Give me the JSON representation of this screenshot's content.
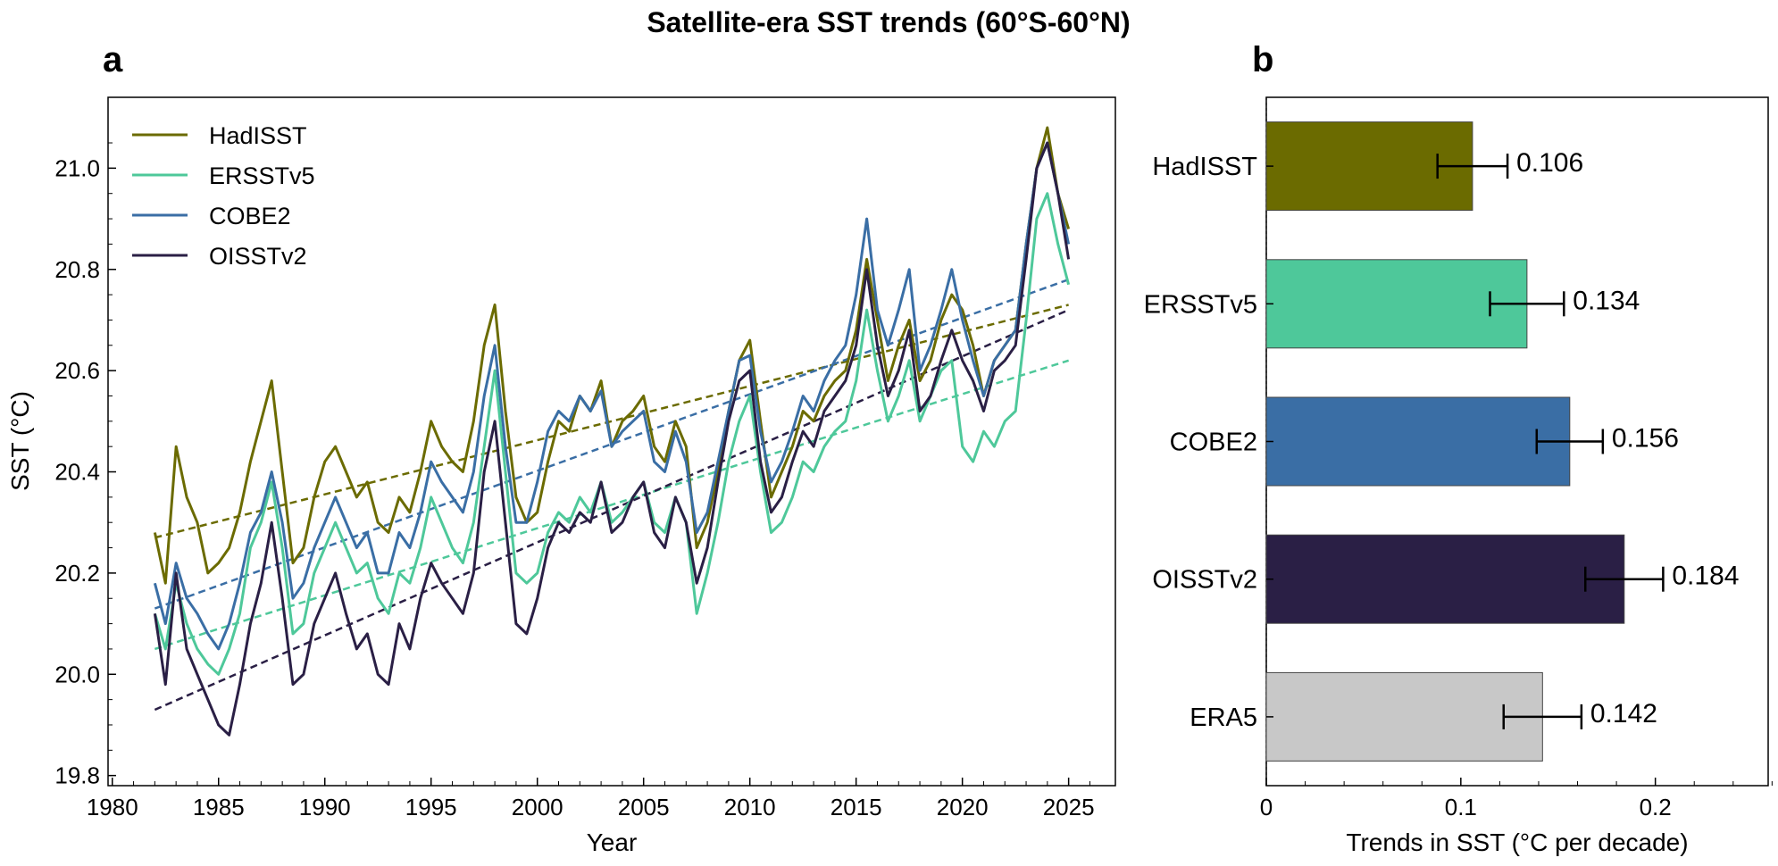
{
  "figure": {
    "title": "Satellite-era SST trends (60°S-60°N)",
    "panel_a_label": "a",
    "panel_b_label": "b"
  },
  "chart_data": [
    {
      "type": "line",
      "panel": "a",
      "xlabel": "Year",
      "ylabel": "SST (°C)",
      "xlim": [
        1979.8,
        2027.2
      ],
      "ylim": [
        19.78,
        21.14
      ],
      "xticks": [
        1980,
        1985,
        1990,
        1995,
        2000,
        2005,
        2010,
        2015,
        2020,
        2025
      ],
      "xtick_labels": [
        "1980",
        "1985",
        "1990",
        "1995",
        "2000",
        "2005",
        "2010",
        "2015",
        "2020",
        "2025"
      ],
      "yticks": [
        19.8,
        20.0,
        20.2,
        20.4,
        20.6,
        20.8,
        21.0
      ],
      "ytick_labels": [
        "19.8",
        "20.0",
        "20.2",
        "20.4",
        "20.6",
        "20.8",
        "21.0"
      ],
      "grid": false,
      "legend_position": "top-left",
      "series": [
        {
          "name": "HadISST",
          "color": "#6b6b00",
          "x": [
            1982.0,
            1982.5,
            1983.0,
            1983.5,
            1984.0,
            1984.5,
            1985.0,
            1985.5,
            1986.0,
            1986.5,
            1987.0,
            1987.5,
            1988.0,
            1988.5,
            1989.0,
            1989.5,
            1990.0,
            1990.5,
            1991.0,
            1991.5,
            1992.0,
            1992.5,
            1993.0,
            1993.5,
            1994.0,
            1994.5,
            1995.0,
            1995.5,
            1996.0,
            1996.5,
            1997.0,
            1997.5,
            1998.0,
            1998.5,
            1999.0,
            1999.5,
            2000.0,
            2000.5,
            2001.0,
            2001.5,
            2002.0,
            2002.5,
            2003.0,
            2003.5,
            2004.0,
            2004.5,
            2005.0,
            2005.5,
            2006.0,
            2006.5,
            2007.0,
            2007.5,
            2008.0,
            2008.5,
            2009.0,
            2009.5,
            2010.0,
            2010.5,
            2011.0,
            2011.5,
            2012.0,
            2012.5,
            2013.0,
            2013.5,
            2014.0,
            2014.5,
            2015.0,
            2015.5,
            2016.0,
            2016.5,
            2017.0,
            2017.5,
            2018.0,
            2018.5,
            2019.0,
            2019.5,
            2020.0,
            2020.5,
            2021.0,
            2021.5,
            2022.0,
            2022.5,
            2023.0,
            2023.5,
            2024.0,
            2024.5,
            2025.0
          ],
          "y": [
            20.28,
            20.18,
            20.45,
            20.35,
            20.3,
            20.2,
            20.22,
            20.25,
            20.32,
            20.42,
            20.5,
            20.58,
            20.4,
            20.22,
            20.25,
            20.35,
            20.42,
            20.45,
            20.4,
            20.35,
            20.38,
            20.3,
            20.28,
            20.35,
            20.32,
            20.4,
            20.5,
            20.45,
            20.42,
            20.4,
            20.5,
            20.65,
            20.73,
            20.52,
            20.35,
            20.3,
            20.32,
            20.42,
            20.5,
            20.48,
            20.55,
            20.52,
            20.58,
            20.45,
            20.5,
            20.52,
            20.55,
            20.45,
            20.42,
            20.5,
            20.45,
            20.25,
            20.3,
            20.4,
            20.52,
            20.62,
            20.66,
            20.5,
            20.35,
            20.4,
            20.45,
            20.52,
            20.5,
            20.55,
            20.58,
            20.6,
            20.68,
            20.82,
            20.7,
            20.58,
            20.65,
            20.7,
            20.58,
            20.62,
            20.7,
            20.75,
            20.72,
            20.65,
            20.55,
            20.62,
            20.65,
            20.68,
            20.85,
            21.0,
            21.08,
            20.95,
            20.88
          ],
          "trend": [
            20.27,
            20.73
          ]
        },
        {
          "name": "ERSSTv5",
          "color": "#4ec89a",
          "x": [
            1982.0,
            1982.5,
            1983.0,
            1983.5,
            1984.0,
            1984.5,
            1985.0,
            1985.5,
            1986.0,
            1986.5,
            1987.0,
            1987.5,
            1988.0,
            1988.5,
            1989.0,
            1989.5,
            1990.0,
            1990.5,
            1991.0,
            1991.5,
            1992.0,
            1992.5,
            1993.0,
            1993.5,
            1994.0,
            1994.5,
            1995.0,
            1995.5,
            1996.0,
            1996.5,
            1997.0,
            1997.5,
            1998.0,
            1998.5,
            1999.0,
            1999.5,
            2000.0,
            2000.5,
            2001.0,
            2001.5,
            2002.0,
            2002.5,
            2003.0,
            2003.5,
            2004.0,
            2004.5,
            2005.0,
            2005.5,
            2006.0,
            2006.5,
            2007.0,
            2007.5,
            2008.0,
            2008.5,
            2009.0,
            2009.5,
            2010.0,
            2010.5,
            2011.0,
            2011.5,
            2012.0,
            2012.5,
            2013.0,
            2013.5,
            2014.0,
            2014.5,
            2015.0,
            2015.5,
            2016.0,
            2016.5,
            2017.0,
            2017.5,
            2018.0,
            2018.5,
            2019.0,
            2019.5,
            2020.0,
            2020.5,
            2021.0,
            2021.5,
            2022.0,
            2022.5,
            2023.0,
            2023.5,
            2024.0,
            2024.5,
            2025.0
          ],
          "y": [
            20.12,
            20.05,
            20.18,
            20.1,
            20.05,
            20.02,
            20.0,
            20.05,
            20.12,
            20.25,
            20.3,
            20.38,
            20.25,
            20.08,
            20.1,
            20.2,
            20.25,
            20.3,
            20.25,
            20.2,
            20.22,
            20.15,
            20.12,
            20.2,
            20.18,
            20.25,
            20.35,
            20.3,
            20.25,
            20.22,
            20.3,
            20.45,
            20.6,
            20.4,
            20.2,
            20.18,
            20.2,
            20.28,
            20.32,
            20.3,
            20.35,
            20.32,
            20.38,
            20.3,
            20.32,
            20.35,
            20.38,
            20.3,
            20.28,
            20.35,
            20.3,
            20.12,
            20.2,
            20.3,
            20.42,
            20.5,
            20.55,
            20.4,
            20.28,
            20.3,
            20.35,
            20.42,
            20.4,
            20.45,
            20.48,
            20.5,
            20.58,
            20.72,
            20.6,
            20.5,
            20.55,
            20.62,
            20.5,
            20.55,
            20.6,
            20.62,
            20.45,
            20.42,
            20.48,
            20.45,
            20.5,
            20.52,
            20.7,
            20.9,
            20.95,
            20.85,
            20.77
          ],
          "trend": [
            20.05,
            20.62
          ]
        },
        {
          "name": "COBE2",
          "color": "#3a6ea5",
          "x": [
            1982.0,
            1982.5,
            1983.0,
            1983.5,
            1984.0,
            1984.5,
            1985.0,
            1985.5,
            1986.0,
            1986.5,
            1987.0,
            1987.5,
            1988.0,
            1988.5,
            1989.0,
            1989.5,
            1990.0,
            1990.5,
            1991.0,
            1991.5,
            1992.0,
            1992.5,
            1993.0,
            1993.5,
            1994.0,
            1994.5,
            1995.0,
            1995.5,
            1996.0,
            1996.5,
            1997.0,
            1997.5,
            1998.0,
            1998.5,
            1999.0,
            1999.5,
            2000.0,
            2000.5,
            2001.0,
            2001.5,
            2002.0,
            2002.5,
            2003.0,
            2003.5,
            2004.0,
            2004.5,
            2005.0,
            2005.5,
            2006.0,
            2006.5,
            2007.0,
            2007.5,
            2008.0,
            2008.5,
            2009.0,
            2009.5,
            2010.0,
            2010.5,
            2011.0,
            2011.5,
            2012.0,
            2012.5,
            2013.0,
            2013.5,
            2014.0,
            2014.5,
            2015.0,
            2015.5,
            2016.0,
            2016.5,
            2017.0,
            2017.5,
            2018.0,
            2018.5,
            2019.0,
            2019.5,
            2020.0,
            2020.5,
            2021.0,
            2021.5,
            2022.0,
            2022.5,
            2023.0,
            2023.5,
            2024.0,
            2024.5,
            2025.0
          ],
          "y": [
            20.18,
            20.1,
            20.22,
            20.15,
            20.12,
            20.08,
            20.05,
            20.1,
            20.18,
            20.28,
            20.32,
            20.4,
            20.3,
            20.15,
            20.18,
            20.25,
            20.3,
            20.35,
            20.3,
            20.25,
            20.28,
            20.2,
            20.2,
            20.28,
            20.25,
            20.32,
            20.42,
            20.38,
            20.35,
            20.32,
            20.4,
            20.55,
            20.65,
            20.45,
            20.3,
            20.3,
            20.38,
            20.48,
            20.52,
            20.5,
            20.55,
            20.52,
            20.56,
            20.45,
            20.48,
            20.5,
            20.52,
            20.42,
            20.4,
            20.48,
            20.42,
            20.28,
            20.32,
            20.42,
            20.52,
            20.62,
            20.63,
            20.48,
            20.38,
            20.42,
            20.48,
            20.55,
            20.52,
            20.58,
            20.62,
            20.65,
            20.75,
            20.9,
            20.72,
            20.65,
            20.72,
            20.8,
            20.6,
            20.65,
            20.72,
            20.8,
            20.7,
            20.62,
            20.55,
            20.62,
            20.65,
            20.68,
            20.85,
            21.0,
            21.05,
            20.95,
            20.85
          ],
          "trend": [
            20.13,
            20.78
          ]
        },
        {
          "name": "OISSTv2",
          "color": "#2a1f45",
          "x": [
            1982.0,
            1982.5,
            1983.0,
            1983.5,
            1984.0,
            1984.5,
            1985.0,
            1985.5,
            1986.0,
            1986.5,
            1987.0,
            1987.5,
            1988.0,
            1988.5,
            1989.0,
            1989.5,
            1990.0,
            1990.5,
            1991.0,
            1991.5,
            1992.0,
            1992.5,
            1993.0,
            1993.5,
            1994.0,
            1994.5,
            1995.0,
            1995.5,
            1996.0,
            1996.5,
            1997.0,
            1997.5,
            1998.0,
            1998.5,
            1999.0,
            1999.5,
            2000.0,
            2000.5,
            2001.0,
            2001.5,
            2002.0,
            2002.5,
            2003.0,
            2003.5,
            2004.0,
            2004.5,
            2005.0,
            2005.5,
            2006.0,
            2006.5,
            2007.0,
            2007.5,
            2008.0,
            2008.5,
            2009.0,
            2009.5,
            2010.0,
            2010.5,
            2011.0,
            2011.5,
            2012.0,
            2012.5,
            2013.0,
            2013.5,
            2014.0,
            2014.5,
            2015.0,
            2015.5,
            2016.0,
            2016.5,
            2017.0,
            2017.5,
            2018.0,
            2018.5,
            2019.0,
            2019.5,
            2020.0,
            2020.5,
            2021.0,
            2021.5,
            2022.0,
            2022.5,
            2023.0,
            2023.5,
            2024.0,
            2024.5,
            2025.0
          ],
          "y": [
            20.12,
            19.98,
            20.2,
            20.05,
            20.0,
            19.95,
            19.9,
            19.88,
            19.98,
            20.1,
            20.18,
            20.3,
            20.15,
            19.98,
            20.0,
            20.1,
            20.15,
            20.2,
            20.12,
            20.05,
            20.08,
            20.0,
            19.98,
            20.1,
            20.05,
            20.15,
            20.22,
            20.18,
            20.15,
            20.12,
            20.2,
            20.4,
            20.5,
            20.3,
            20.1,
            20.08,
            20.15,
            20.25,
            20.3,
            20.28,
            20.32,
            20.3,
            20.38,
            20.28,
            20.3,
            20.35,
            20.38,
            20.28,
            20.25,
            20.35,
            20.3,
            20.18,
            20.25,
            20.38,
            20.5,
            20.58,
            20.6,
            20.42,
            20.32,
            20.35,
            20.42,
            20.48,
            20.45,
            20.52,
            20.55,
            20.58,
            20.65,
            20.8,
            20.65,
            20.55,
            20.6,
            20.68,
            20.52,
            20.55,
            20.62,
            20.68,
            20.62,
            20.58,
            20.52,
            20.6,
            20.62,
            20.65,
            20.82,
            21.0,
            21.05,
            20.95,
            20.82
          ],
          "trend": [
            19.93,
            20.72
          ]
        }
      ]
    },
    {
      "type": "bar",
      "panel": "b",
      "orientation": "horizontal",
      "xlabel": "Trends in SST (°C per decade)",
      "xlim": [
        0,
        0.258
      ],
      "xticks": [
        0,
        0.1,
        0.2
      ],
      "xtick_labels": [
        "0",
        "0.1",
        "0.2"
      ],
      "categories": [
        "HadISST",
        "ERSSTv5",
        "COBE2",
        "OISSTv2",
        "ERA5"
      ],
      "values": [
        0.106,
        0.134,
        0.156,
        0.184,
        0.142
      ],
      "value_labels": [
        "0.106",
        "0.134",
        "0.156",
        "0.184",
        "0.142"
      ],
      "errors": [
        0.018,
        0.019,
        0.017,
        0.02,
        0.02
      ],
      "colors": [
        "#6b6b00",
        "#4ec89a",
        "#3a6ea5",
        "#2a1f45",
        "#c8c8c8"
      ]
    }
  ]
}
